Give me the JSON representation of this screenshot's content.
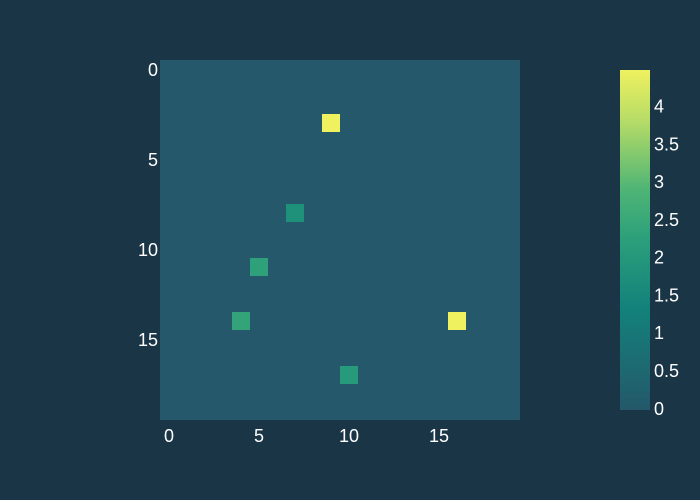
{
  "chart_data": {
    "type": "heatmap",
    "title": "",
    "xlabel": "",
    "ylabel": "",
    "grid": false,
    "rows": 20,
    "cols": 20,
    "xlim": [
      0,
      20
    ],
    "ylim": [
      0,
      20
    ],
    "background_value": 0,
    "cells": [
      {
        "row": 3,
        "col": 9,
        "value": 4.5
      },
      {
        "row": 8,
        "col": 7,
        "value": 1.8
      },
      {
        "row": 11,
        "col": 5,
        "value": 2.3
      },
      {
        "row": 14,
        "col": 4,
        "value": 2.4
      },
      {
        "row": 14,
        "col": 16,
        "value": 4.5
      },
      {
        "row": 17,
        "col": 10,
        "value": 2.1
      }
    ],
    "x_ticks": [
      0,
      5,
      10,
      15
    ],
    "x_tick_labels": [
      "0",
      "5",
      "10",
      "15"
    ],
    "y_ticks": [
      0,
      5,
      10,
      15
    ],
    "y_tick_labels": [
      "0",
      "5",
      "10",
      "15"
    ],
    "colorbar": {
      "min": 0,
      "max": 4.5,
      "ticks": [
        0,
        0.5,
        1,
        1.5,
        2,
        2.5,
        3,
        3.5,
        4
      ],
      "tick_labels": [
        "0",
        "0.5",
        "1",
        "1.5",
        "2",
        "2.5",
        "3",
        "3.5",
        "4"
      ],
      "colorscale": [
        [
          0,
          "#24586a"
        ],
        [
          0.3,
          "#13827b"
        ],
        [
          0.5,
          "#2b9f7b"
        ],
        [
          0.65,
          "#4fb575"
        ],
        [
          0.85,
          "#b6dc67"
        ],
        [
          1,
          "#eff15f"
        ]
      ]
    }
  }
}
